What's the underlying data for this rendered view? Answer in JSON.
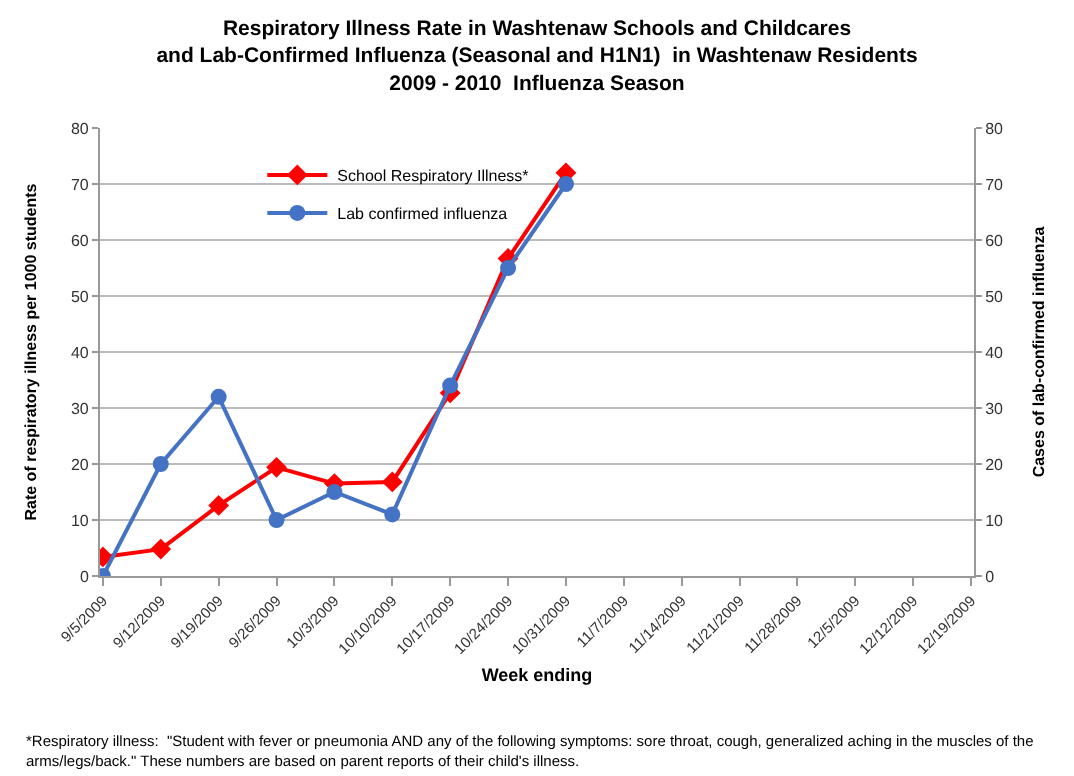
{
  "chart_data": {
    "type": "line",
    "title": "Respiratory Illness Rate in Washtenaw Schools and Childcares\nand Lab-Confirmed Influenza (Seasonal and H1N1)  in Washtenaw Residents\n2009 - 2010  Influenza Season",
    "xlabel": "Week ending",
    "ylabel": "Rate of respiratory illness per 1000 students",
    "y2label": "Cases of lab-confirmed influenza",
    "categories": [
      "9/5/2009",
      "9/12/2009",
      "9/19/2009",
      "9/26/2009",
      "10/3/2009",
      "10/10/2009",
      "10/17/2009",
      "10/24/2009",
      "10/31/2009",
      "11/7/2009",
      "11/14/2009",
      "11/21/2009",
      "11/28/2009",
      "12/5/2009",
      "12/12/2009",
      "12/19/2009"
    ],
    "series": [
      {
        "name": "School Respiratory Illness*",
        "color": "#ff0000",
        "marker": "diamond",
        "values": [
          3.4,
          4.8,
          12.6,
          19.4,
          16.5,
          16.8,
          32.7,
          56.7,
          72,
          null,
          null,
          null,
          null,
          null,
          null,
          null
        ]
      },
      {
        "name": "Lab confirmed influenza",
        "color": "#4472c4",
        "marker": "circle",
        "axis": "y2",
        "values": [
          0,
          20,
          32,
          10,
          15,
          11,
          34,
          55,
          70,
          null,
          null,
          null,
          null,
          null,
          null,
          null
        ]
      }
    ],
    "ylim": [
      0,
      80
    ],
    "yticks": [
      0,
      10,
      20,
      30,
      40,
      50,
      60,
      70,
      80
    ],
    "y2lim": [
      0,
      80
    ],
    "y2ticks": [
      0,
      10,
      20,
      30,
      40,
      50,
      60,
      70,
      80
    ],
    "grid": "y",
    "legend": "top left",
    "line_style": "solid",
    "annotations": [
      "*Respiratory illness:  \"Student with fever or pneumonia AND any of the following symptoms: sore throat, cough, generalized aching in the muscles of the\narms/legs/back.\" These numbers are based on parent reports of their child's illness."
    ]
  }
}
